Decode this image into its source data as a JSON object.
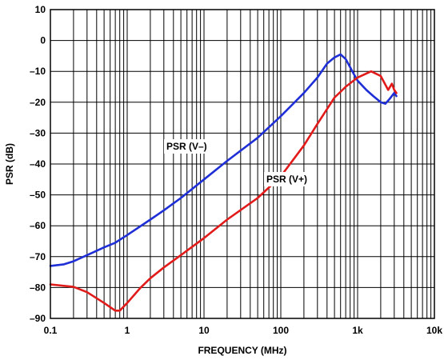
{
  "chart_data": {
    "type": "line",
    "title": "",
    "xlabel": "FREQUENCY (MHz)",
    "ylabel": "PSR (dB)",
    "xscale": "log",
    "xlim": [
      0.1,
      10000
    ],
    "ylim": [
      -90,
      10
    ],
    "grid": true,
    "x_tick_labels": [
      "0.1",
      "1",
      "10",
      "100",
      "1k",
      "10k"
    ],
    "y_tick_labels": [
      "10",
      "0",
      "–10",
      "–20",
      "–30",
      "–40",
      "–50",
      "–60",
      "–70",
      "–80",
      "–90"
    ],
    "annotations": [
      {
        "text": "PSR (V–)",
        "series": "PSR (V–)"
      },
      {
        "text": "PSR (V+)",
        "series": "PSR (V+)"
      }
    ],
    "series": [
      {
        "name": "PSR (V–)",
        "color": "#1f2fd6",
        "points": [
          [
            0.1,
            -73
          ],
          [
            0.15,
            -72.5
          ],
          [
            0.2,
            -71.5
          ],
          [
            0.3,
            -69.5
          ],
          [
            0.5,
            -67
          ],
          [
            0.7,
            -65.5
          ],
          [
            1,
            -63
          ],
          [
            2,
            -58
          ],
          [
            3,
            -55
          ],
          [
            5,
            -51
          ],
          [
            10,
            -45
          ],
          [
            20,
            -39
          ],
          [
            50,
            -31.5
          ],
          [
            100,
            -24.5
          ],
          [
            200,
            -17
          ],
          [
            300,
            -12
          ],
          [
            400,
            -7.5
          ],
          [
            500,
            -5.5
          ],
          [
            600,
            -4.5
          ],
          [
            700,
            -6
          ],
          [
            900,
            -11
          ],
          [
            1000,
            -13
          ],
          [
            1300,
            -16
          ],
          [
            1600,
            -18
          ],
          [
            2000,
            -20
          ],
          [
            2300,
            -20.5
          ],
          [
            2600,
            -19
          ],
          [
            3000,
            -17
          ],
          [
            3200,
            -18
          ]
        ]
      },
      {
        "name": "PSR (V+)",
        "color": "#e11a1a",
        "points": [
          [
            0.1,
            -79
          ],
          [
            0.2,
            -79.8
          ],
          [
            0.3,
            -81.5
          ],
          [
            0.5,
            -85
          ],
          [
            0.7,
            -87.5
          ],
          [
            0.8,
            -87.5
          ],
          [
            1,
            -85
          ],
          [
            1.5,
            -80
          ],
          [
            2,
            -77
          ],
          [
            3,
            -73.5
          ],
          [
            5,
            -69.5
          ],
          [
            10,
            -64
          ],
          [
            20,
            -58
          ],
          [
            50,
            -51
          ],
          [
            100,
            -44
          ],
          [
            200,
            -34
          ],
          [
            300,
            -27
          ],
          [
            500,
            -18.5
          ],
          [
            700,
            -15
          ],
          [
            1000,
            -12
          ],
          [
            1500,
            -10
          ],
          [
            2000,
            -11.5
          ],
          [
            2500,
            -16
          ],
          [
            2800,
            -14
          ],
          [
            3000,
            -16
          ],
          [
            3200,
            -17
          ]
        ]
      }
    ]
  }
}
